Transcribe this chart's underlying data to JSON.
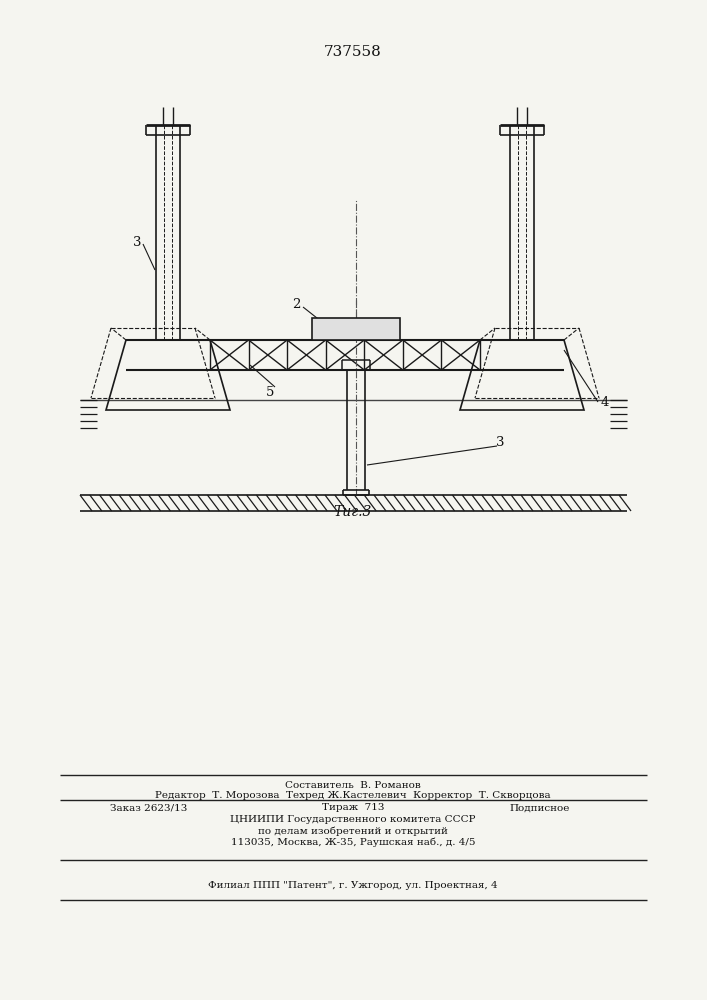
{
  "patent_number": "737558",
  "fig_label": "Τиг.3",
  "labels": {
    "2": "2",
    "3L": "3",
    "3R": "3",
    "4": "4",
    "5": "5"
  },
  "bg_color": "#f5f5f0",
  "line_color": "#1a1a1a",
  "text_color": "#111111",
  "footer": {
    "line1": "Составитель  В. Романов",
    "line2": "Редактор  Т. Морозова  Техред Ж.Кастелевич  Корректор  Т. Скворцова",
    "line3a": "Заказ 2623/13",
    "line3b": "Тираж  713",
    "line3c": "Подписное",
    "line4": "ЦНИИПИ Государственного комитета СССР",
    "line5": "по делам изобретений и открытий",
    "line6": "113035, Москва, Ж-35, Раушская наб., д. 4/5",
    "line7": "Филиал ППП \"Патент\", г. Ужгород, ул. Проектная, 4"
  }
}
